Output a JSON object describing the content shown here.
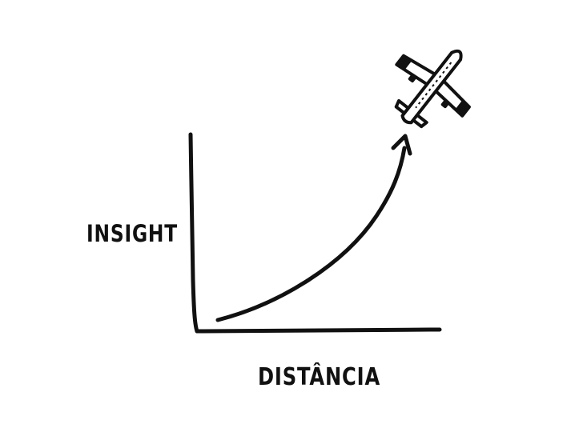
{
  "diagram": {
    "y_axis_label": "INSIGHT",
    "x_axis_label": "DISTÂNCIA",
    "icon": "airplane-icon",
    "colors": {
      "ink": "#111111",
      "background": "#ffffff"
    }
  }
}
